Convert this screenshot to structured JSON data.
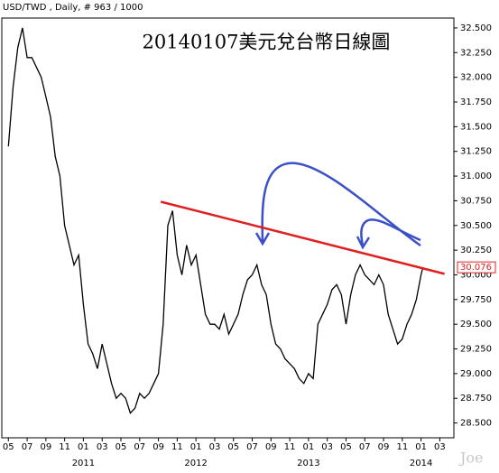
{
  "chart_data": {
    "type": "line",
    "title": "20140107美元兌台幣日線圖",
    "header": "USD/TWD , Daily, # 963 / 1000",
    "watermark": "Joe",
    "series": [
      {
        "name": "USD/TWD",
        "color": "#000000",
        "x": [
          0,
          0.5,
          1,
          1.5,
          2,
          2.5,
          3,
          3.5,
          4,
          4.5,
          5,
          5.5,
          6,
          6.5,
          7,
          7.5,
          8,
          8.5,
          9,
          9.5,
          10,
          10.5,
          11,
          11.5,
          12,
          12.5,
          13,
          13.5,
          14,
          14.5,
          15,
          15.5,
          16,
          16.5,
          17,
          17.5,
          18,
          18.5,
          19,
          19.5,
          20,
          20.5,
          21,
          21.5,
          22,
          22.5,
          23,
          23.5,
          24,
          24.5,
          25,
          25.5,
          26,
          26.5,
          27,
          27.5,
          28,
          28.5,
          29,
          29.5,
          30,
          30.5,
          31,
          31.5,
          32,
          32.5,
          33,
          33.5,
          34,
          34.5,
          35,
          35.5,
          36,
          36.5,
          37,
          37.5,
          38,
          38.5,
          39,
          39.5,
          40,
          40.5,
          41,
          41.5,
          42,
          42.5,
          43,
          43.5,
          44,
          44.2
        ],
        "values": [
          31.3,
          31.9,
          32.3,
          32.5,
          32.2,
          32.2,
          32.1,
          32.0,
          31.8,
          31.6,
          31.2,
          31.0,
          30.5,
          30.3,
          30.1,
          30.2,
          29.7,
          29.3,
          29.2,
          29.05,
          29.3,
          29.1,
          28.9,
          28.75,
          28.8,
          28.75,
          28.6,
          28.65,
          28.8,
          28.75,
          28.8,
          28.9,
          29.0,
          29.5,
          30.5,
          30.65,
          30.2,
          30.0,
          30.3,
          30.1,
          30.2,
          29.9,
          29.6,
          29.5,
          29.5,
          29.45,
          29.6,
          29.4,
          29.5,
          29.6,
          29.8,
          29.95,
          30.0,
          30.1,
          29.9,
          29.8,
          29.5,
          29.3,
          29.25,
          29.15,
          29.1,
          29.05,
          28.95,
          28.9,
          29.0,
          28.95,
          29.5,
          29.6,
          29.7,
          29.85,
          29.9,
          29.8,
          29.5,
          29.8,
          30.0,
          30.1,
          30.0,
          29.95,
          29.9,
          30.0,
          29.9,
          29.6,
          29.45,
          29.3,
          29.35,
          29.5,
          29.6,
          29.75,
          30.0,
          30.076
        ]
      }
    ],
    "last_price": {
      "value": 30.076,
      "label": "30.076"
    },
    "trendline": {
      "color": "#e02020",
      "x": [
        16.25,
        46.5
      ],
      "y": [
        30.74,
        30.01
      ]
    },
    "xlim": [
      -0.7,
      47.5
    ],
    "ylim": [
      28.35,
      32.6
    ],
    "xticks": [
      {
        "value": 0,
        "label": "05"
      },
      {
        "value": 2,
        "label": "07"
      },
      {
        "value": 4,
        "label": "09"
      },
      {
        "value": 6,
        "label": "11"
      },
      {
        "value": 8,
        "label": "01"
      },
      {
        "value": 10,
        "label": "03"
      },
      {
        "value": 12,
        "label": "05"
      },
      {
        "value": 14,
        "label": "07"
      },
      {
        "value": 16,
        "label": "09"
      },
      {
        "value": 18,
        "label": "11"
      },
      {
        "value": 20,
        "label": "01"
      },
      {
        "value": 22,
        "label": "03"
      },
      {
        "value": 24,
        "label": "05"
      },
      {
        "value": 26,
        "label": "07"
      },
      {
        "value": 28,
        "label": "09"
      },
      {
        "value": 30,
        "label": "11"
      },
      {
        "value": 32,
        "label": "01"
      },
      {
        "value": 34,
        "label": "03"
      },
      {
        "value": 36,
        "label": "05"
      },
      {
        "value": 38,
        "label": "07"
      },
      {
        "value": 40,
        "label": "09"
      },
      {
        "value": 42,
        "label": "11"
      },
      {
        "value": 44,
        "label": "01"
      },
      {
        "value": 46,
        "label": "03"
      }
    ],
    "xyears": [
      {
        "value": 8,
        "label": "2011"
      },
      {
        "value": 20,
        "label": "2012"
      },
      {
        "value": 32,
        "label": "2013"
      },
      {
        "value": 44,
        "label": "2014"
      }
    ],
    "yticks": [
      {
        "value": 28.5,
        "label": "28.500"
      },
      {
        "value": 28.75,
        "label": "28.750"
      },
      {
        "value": 29,
        "label": "29.000"
      },
      {
        "value": 29.25,
        "label": "29.250"
      },
      {
        "value": 29.5,
        "label": "29.500"
      },
      {
        "value": 29.75,
        "label": "29.750"
      },
      {
        "value": 30,
        "label": "30.000"
      },
      {
        "value": 30.25,
        "label": "30.250"
      },
      {
        "value": 30.5,
        "label": "30.500"
      },
      {
        "value": 30.75,
        "label": "30.750"
      },
      {
        "value": 31,
        "label": "31.000"
      },
      {
        "value": 31.25,
        "label": "31.250"
      },
      {
        "value": 31.5,
        "label": "31.500"
      },
      {
        "value": 31.75,
        "label": "31.750"
      },
      {
        "value": 32,
        "label": "32.000"
      },
      {
        "value": 32.25,
        "label": "32.250"
      },
      {
        "value": 32.5,
        "label": "32.500"
      }
    ]
  }
}
